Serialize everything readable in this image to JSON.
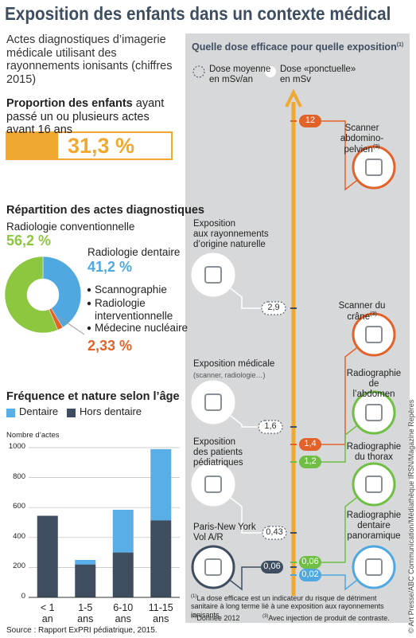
{
  "title": "Exposition des enfants dans un contexte médical",
  "intro": "Actes diagnostiques d’imagerie médicale utilisant des rayonnements ionisants (chiffres 2015)",
  "chart_data": [
    {
      "type": "progress",
      "title": "Proportion des enfants",
      "subtitle": "ayant passé un ou plusieurs actes avant 16 ans",
      "value": 31.3,
      "value_label": "31,3 %",
      "color": "#f0a830",
      "xlim": [
        0,
        100
      ]
    },
    {
      "type": "donut",
      "title": "Répartition des actes diagnostiques",
      "categories": [
        "Radiologie conventionnelle",
        "Radiologie dentaire",
        null
      ],
      "values": [
        56.2,
        41.2,
        2.33
      ],
      "value_labels": [
        "56,2 %",
        "41,2 %",
        "2,33 %"
      ],
      "colors": [
        "#8dc63f",
        "#4fa8e0",
        "#e2622a"
      ],
      "bullet_items": [
        "Scannographie",
        "Radiologie\ninterventionnelle",
        "Médecine nucléaire"
      ]
    },
    {
      "type": "stacked_bar",
      "title": "Fréquence et nature selon l’âge",
      "ylabel": "Nombre d’actes",
      "categories": [
        "< 1\nan",
        "1-5\nans",
        "6-10\nans",
        "11-15\nans"
      ],
      "series": [
        {
          "name": "Dentaire",
          "color": "#5aaee8",
          "values": [
            0,
            30,
            285,
            475
          ]
        },
        {
          "name": "Hors dentaire",
          "color": "#3e4e60",
          "values": [
            545,
            220,
            300,
            515
          ]
        }
      ],
      "ylim": [
        0,
        1000
      ],
      "yticks": [
        0,
        200,
        400,
        600,
        800,
        1000
      ],
      "grid": true,
      "source": "Source : Rapport ExPRI pédiatrique, 2015."
    }
  ],
  "dose_panel": {
    "title": "Quelle dose efficace pour quelle exposition",
    "title_note": "(1)",
    "legend": [
      "Dose moyenne\nen mSv/an",
      "Dose «ponctuelle»\nen mSv"
    ],
    "items": [
      {
        "label": "Scanner\nabdomino-pelvien",
        "note": "(3)",
        "dose": "12",
        "style": "point",
        "color": "#e2622a"
      },
      {
        "label": "Exposition\naux rayonnements\nd’origine naturelle",
        "dose": "2,9",
        "style": "average",
        "color": "#3e4e60"
      },
      {
        "label": "Scanner du crâne",
        "note": "(3)",
        "dose": "1,4",
        "style": "point",
        "color": "#e2622a"
      },
      {
        "label": "Exposition médicale",
        "detail": "(scanner, radiologie…)",
        "dose": "1,6",
        "style": "average",
        "color": "#3e4e60"
      },
      {
        "label": "Radiographie\nde l’abdomen",
        "dose": "1,2",
        "style": "point",
        "color": "#6fbf44"
      },
      {
        "label": "Exposition\ndes patients\npédiatriques",
        "dose": "0,43",
        "style": "average",
        "color": "#3e4e60"
      },
      {
        "label": "Radiographie\ndu thorax",
        "dose": "0,06",
        "style": "point",
        "color": "#6fbf44"
      },
      {
        "label": "Paris-New York\nVol A/R",
        "dose": "0,06",
        "style": "point",
        "color": "#3e4e60"
      },
      {
        "label": "Radiographie\ndentaire\npanoramique",
        "dose": "0,02",
        "style": "point",
        "color": "#4fa8e0"
      }
    ],
    "footnotes": [
      {
        "mark": "(1)",
        "text": "La dose efficace est un indicateur du risque de détriment sanitaire à long terme lié à une exposition aux rayonnements ionisants."
      },
      {
        "mark": "(2)",
        "text": "Donnée 2012"
      },
      {
        "mark": "(3)",
        "text": "Avec injection de produit de contraste."
      }
    ],
    "credit": "© Art Presse/ABC Communication/Médiathèque IRSN/Magazine Repères"
  }
}
